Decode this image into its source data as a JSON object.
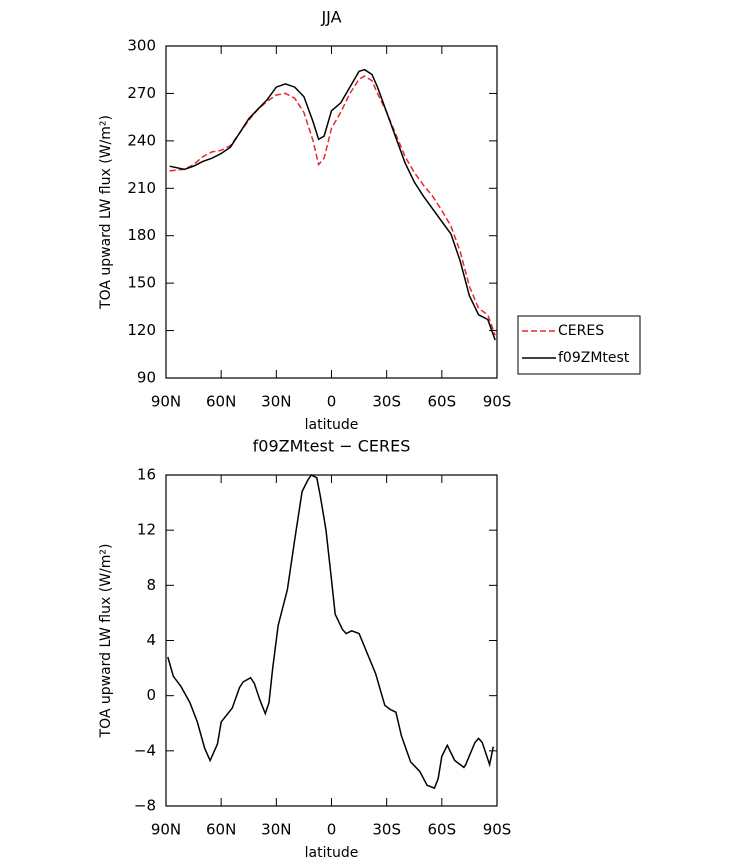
{
  "chart_data": [
    {
      "type": "line",
      "title": "JJA",
      "xlabel": "latitude",
      "ylabel": "TOA upward LW flux (W/m²)",
      "x": [
        88,
        80,
        75,
        70,
        65,
        60,
        55,
        50,
        45,
        40,
        35,
        30,
        25,
        20,
        15,
        10,
        7,
        4,
        0,
        -5,
        -10,
        -15,
        -18,
        -22,
        -25,
        -30,
        -35,
        -40,
        -45,
        -50,
        -55,
        -60,
        -65,
        -70,
        -75,
        -80,
        -85,
        -89
      ],
      "series": [
        {
          "name": "CERES",
          "color": "#e8282d",
          "linestyle": "dashed",
          "values": [
            221,
            222,
            225,
            230,
            233,
            234,
            237,
            245,
            253,
            260,
            265,
            269,
            270,
            267,
            258,
            240,
            225,
            229,
            248,
            258,
            270,
            279,
            281,
            278,
            270,
            258,
            244,
            230,
            220,
            212,
            205,
            196,
            186,
            170,
            148,
            134,
            130,
            117
          ]
        },
        {
          "name": "f09ZMtest",
          "color": "#000000",
          "linestyle": "solid",
          "values": [
            224,
            222,
            224,
            227,
            229,
            232,
            236,
            245,
            254,
            260,
            266,
            274,
            276,
            274,
            268,
            252,
            241,
            243,
            259,
            264,
            274,
            284,
            285,
            282,
            274,
            258,
            242,
            226,
            214,
            205,
            197,
            189,
            181,
            164,
            142,
            130,
            127,
            114
          ]
        }
      ],
      "xlim": [
        90,
        -90
      ],
      "xticks": [
        {
          "value": 90,
          "label": "90N"
        },
        {
          "value": 60,
          "label": "60N"
        },
        {
          "value": 30,
          "label": "30N"
        },
        {
          "value": 0,
          "label": "0"
        },
        {
          "value": -30,
          "label": "30S"
        },
        {
          "value": -60,
          "label": "60S"
        },
        {
          "value": -90,
          "label": "90S"
        }
      ],
      "ylim": [
        90,
        300
      ],
      "yticks": [
        90,
        120,
        150,
        180,
        210,
        240,
        270,
        300
      ],
      "legend": "outside-right"
    },
    {
      "type": "line",
      "title": "f09ZMtest − CERES",
      "xlabel": "latitude",
      "ylabel": "TOA upward LW flux (W/m²)",
      "x": [
        89,
        86,
        82,
        77,
        73,
        69,
        66,
        62,
        60,
        54,
        50,
        48,
        44,
        42,
        39,
        36,
        34,
        32,
        29,
        24,
        20,
        16,
        13,
        11,
        8,
        6,
        3,
        0,
        -2,
        -6,
        -8,
        -11,
        -15,
        -24,
        -29,
        -32,
        -35,
        -38,
        -43,
        -48,
        -52,
        -56,
        -58,
        -60,
        -63,
        -67,
        -72,
        -73,
        -78,
        -80,
        -82,
        -86,
        -88
      ],
      "series": [
        {
          "color": "#000000",
          "linestyle": "solid",
          "values": [
            2.8,
            1.4,
            0.7,
            -0.5,
            -1.9,
            -3.8,
            -4.7,
            -3.5,
            -1.9,
            -0.9,
            0.6,
            1.0,
            1.3,
            0.9,
            -0.3,
            -1.3,
            -0.5,
            2.0,
            5.1,
            7.7,
            11.3,
            14.8,
            15.6,
            16.0,
            15.8,
            14.4,
            12.0,
            8.4,
            5.9,
            4.8,
            4.5,
            4.7,
            4.5,
            1.6,
            -0.7,
            -1.0,
            -1.2,
            -2.9,
            -4.8,
            -5.5,
            -6.5,
            -6.7,
            -6.0,
            -4.4,
            -3.6,
            -4.7,
            -5.2,
            -5.0,
            -3.4,
            -3.1,
            -3.4,
            -5.0,
            -3.7
          ]
        }
      ],
      "xlim": [
        90,
        -90
      ],
      "xticks": [
        {
          "value": 90,
          "label": "90N"
        },
        {
          "value": 60,
          "label": "60N"
        },
        {
          "value": 30,
          "label": "30N"
        },
        {
          "value": 0,
          "label": "0"
        },
        {
          "value": -30,
          "label": "30S"
        },
        {
          "value": -60,
          "label": "60S"
        },
        {
          "value": -90,
          "label": "90S"
        }
      ],
      "ylim": [
        -8,
        16
      ],
      "yticks": [
        {
          "value": -8,
          "label": "−8"
        },
        {
          "value": -4,
          "label": "−4"
        },
        0,
        4,
        8,
        12,
        16
      ]
    }
  ]
}
